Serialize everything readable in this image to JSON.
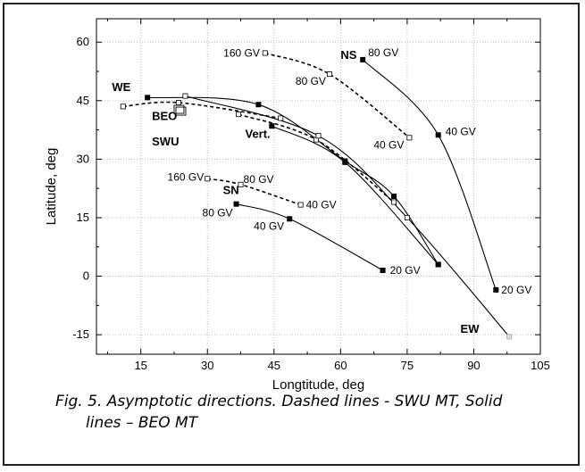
{
  "chart_data": {
    "type": "line",
    "xlabel": "Longtitude, deg",
    "ylabel": "Latitude, deg",
    "xlim": [
      5,
      105
    ],
    "ylim": [
      -20,
      66
    ],
    "xticks": [
      15,
      30,
      45,
      60,
      75,
      90,
      105
    ],
    "yticks": [
      -15,
      0,
      15,
      30,
      45,
      60
    ],
    "grid": true,
    "series": [
      {
        "name": "NS",
        "style": "solid",
        "marker": "filled-square",
        "points": [
          {
            "x": 65,
            "y": 55.5,
            "label": "80 GV"
          },
          {
            "x": 82,
            "y": 36.2,
            "label": "40 GV"
          },
          {
            "x": 95,
            "y": -3.5,
            "label": "20 GV"
          }
        ]
      },
      {
        "name": "NS",
        "style": "dashed",
        "marker": "open-square",
        "points": [
          {
            "x": 43,
            "y": 57.2,
            "label": "160 GV"
          },
          {
            "x": 57.5,
            "y": 51.8,
            "label": "80 GV"
          },
          {
            "x": 75.5,
            "y": 35.5,
            "label": "40 GV"
          }
        ]
      },
      {
        "name": "WE",
        "style": "solid",
        "marker": "filled-square",
        "points": [
          {
            "x": 16.5,
            "y": 45.8,
            "label": ""
          },
          {
            "x": 41.5,
            "y": 44.0,
            "label": ""
          },
          {
            "x": 61,
            "y": 29.5,
            "label": ""
          },
          {
            "x": 72,
            "y": 20.5,
            "label": ""
          },
          {
            "x": 82,
            "y": 3.0,
            "label": ""
          }
        ]
      },
      {
        "name": "WE",
        "style": "dashed",
        "marker": "open-square",
        "points": [
          {
            "x": 11,
            "y": 43.5,
            "label": ""
          },
          {
            "x": 23.5,
            "y": 44.5,
            "label": ""
          },
          {
            "x": 46.5,
            "y": 40.5,
            "label": ""
          }
        ]
      },
      {
        "name": "Vert.",
        "style": "solid",
        "marker": "filled-square",
        "points": [
          {
            "x": 44.5,
            "y": 38.5,
            "label": ""
          },
          {
            "x": 61,
            "y": 29.2,
            "label": ""
          },
          {
            "x": 82,
            "y": 3.0,
            "label": ""
          }
        ]
      },
      {
        "name": "Vert.",
        "style": "dashed",
        "marker": "open-square",
        "points": [
          {
            "x": 37,
            "y": 41.5,
            "label": ""
          },
          {
            "x": 54.5,
            "y": 35.0,
            "label": ""
          },
          {
            "x": 72,
            "y": 19.0,
            "label": ""
          }
        ]
      },
      {
        "name": "SN",
        "style": "solid",
        "marker": "filled-square",
        "points": [
          {
            "x": 36.5,
            "y": 18.5,
            "label": "80 GV"
          },
          {
            "x": 48.5,
            "y": 14.7,
            "label": "40 GV"
          },
          {
            "x": 69.5,
            "y": 1.5,
            "label": "20 GV"
          }
        ]
      },
      {
        "name": "SN",
        "style": "dashed",
        "marker": "open-square",
        "points": [
          {
            "x": 30,
            "y": 25.0,
            "label": "160 GV"
          },
          {
            "x": 37.5,
            "y": 23.5,
            "label": "80 GV"
          },
          {
            "x": 51,
            "y": 18.3,
            "label": "40 GV"
          }
        ]
      },
      {
        "name": "EW",
        "style": "solid",
        "marker": "open-square",
        "points": [
          {
            "x": 25,
            "y": 46.2,
            "label": ""
          },
          {
            "x": 55,
            "y": 36.0,
            "label": ""
          },
          {
            "x": 75,
            "y": 15.0,
            "label": ""
          },
          {
            "x": 98,
            "y": -15.5,
            "label": ""
          }
        ]
      }
    ],
    "annotations": [
      "NS",
      "WE",
      "BEO",
      "SWU",
      "Vert.",
      "SN",
      "EW"
    ]
  },
  "caption": {
    "line1": "Fig. 5. Asymptotic directions. Dashed lines - SWU MT, Solid",
    "line2": "lines – BEO MT"
  }
}
